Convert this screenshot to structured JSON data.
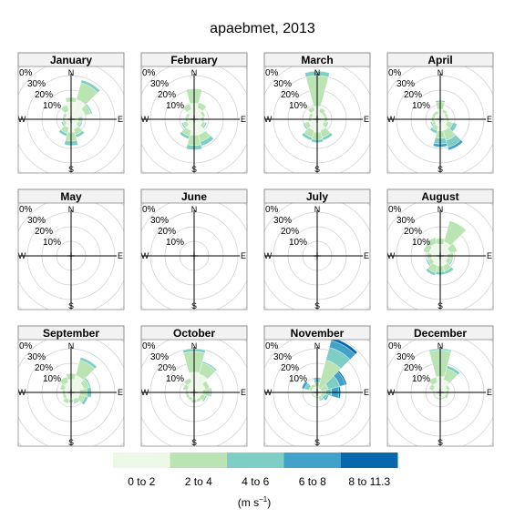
{
  "chart_data": {
    "type": "wind-rose",
    "title": "apaebmet, 2013",
    "direction_labels": {
      "n": "N",
      "e": "E",
      "s": "S",
      "w": "W"
    },
    "radial_ticks": [
      "10%",
      "20%",
      "30%",
      "0%"
    ],
    "grid": true,
    "legend": {
      "position": "bottom",
      "categories": [
        "0 to 2",
        "2 to 4",
        "4 to 6",
        "6 to 8",
        "8 to 11.3"
      ],
      "colors": [
        "#EDF8E9",
        "#BAE4B3",
        "#7ECEC6",
        "#43A2CA",
        "#0868AC"
      ],
      "unit_label": {
        "base": "(m s",
        "sup": "−1",
        "close": ")"
      }
    },
    "directions_deg": [
      0,
      30,
      60,
      90,
      120,
      150,
      180,
      210,
      240,
      270,
      300,
      330
    ],
    "panels": [
      {
        "month": "January",
        "petals": [
          [
            12,
            3,
            0,
            0,
            0
          ],
          [
            14,
            12,
            2,
            0,
            0
          ],
          [
            10,
            4,
            1,
            0,
            0
          ],
          [
            5,
            3,
            0,
            0,
            0
          ],
          [
            5,
            2,
            1,
            0,
            0
          ],
          [
            7,
            4,
            2,
            0,
            0
          ],
          [
            9,
            6,
            3,
            0,
            0
          ],
          [
            6,
            4,
            2,
            0,
            0
          ],
          [
            4,
            2,
            1,
            0,
            0
          ],
          [
            4,
            2,
            0,
            0,
            0
          ],
          [
            4,
            2,
            0,
            0,
            0
          ],
          [
            6,
            4,
            0,
            0,
            0
          ]
        ]
      },
      {
        "month": "February",
        "petals": [
          [
            11,
            10,
            0,
            0,
            0
          ],
          [
            8,
            4,
            0,
            0,
            0
          ],
          [
            6,
            2,
            0,
            0,
            0
          ],
          [
            5,
            2,
            0,
            0,
            0
          ],
          [
            6,
            2,
            1,
            0,
            0
          ],
          [
            11,
            5,
            3,
            0,
            0
          ],
          [
            11,
            7,
            3,
            0,
            0
          ],
          [
            8,
            4,
            2,
            0,
            0
          ],
          [
            5,
            3,
            1,
            0,
            0
          ],
          [
            4,
            2,
            0,
            0,
            0
          ],
          [
            4,
            2,
            0,
            0,
            0
          ],
          [
            7,
            4,
            0,
            0,
            0
          ]
        ]
      },
      {
        "month": "March",
        "petals": [
          [
            9,
            21,
            3,
            0,
            0
          ],
          [
            5,
            3,
            0,
            0,
            0
          ],
          [
            5,
            2,
            0,
            0,
            0
          ],
          [
            5,
            2,
            0,
            0,
            0
          ],
          [
            5,
            2,
            1,
            0,
            0
          ],
          [
            8,
            5,
            2,
            0,
            0
          ],
          [
            9,
            5,
            2,
            0,
            0
          ],
          [
            8,
            5,
            2,
            0,
            0
          ],
          [
            6,
            3,
            1,
            0,
            0
          ],
          [
            4,
            2,
            0,
            0,
            0
          ],
          [
            4,
            2,
            0,
            0,
            0
          ],
          [
            6,
            3,
            0,
            0,
            0
          ]
        ]
      },
      {
        "month": "April",
        "petals": [
          [
            7,
            5,
            1,
            0,
            0
          ],
          [
            5,
            2,
            0,
            0,
            0
          ],
          [
            4,
            2,
            0,
            0,
            0
          ],
          [
            4,
            2,
            0,
            0,
            0
          ],
          [
            5,
            4,
            3,
            0,
            0
          ],
          [
            8,
            7,
            5,
            2,
            0
          ],
          [
            8,
            5,
            4,
            2,
            0
          ],
          [
            5,
            3,
            2,
            0,
            0
          ],
          [
            4,
            2,
            1,
            0,
            0
          ],
          [
            4,
            2,
            0,
            0,
            0
          ],
          [
            4,
            2,
            0,
            0,
            0
          ],
          [
            4,
            2,
            0,
            0,
            0
          ]
        ]
      },
      {
        "month": "May",
        "petals": [
          [
            0,
            0,
            0,
            0,
            0
          ],
          [
            0,
            0,
            0,
            0,
            0
          ],
          [
            0,
            0,
            0,
            0,
            0
          ],
          [
            0,
            0,
            0,
            0,
            0
          ],
          [
            0,
            0,
            0,
            0,
            0
          ],
          [
            0,
            0,
            0,
            0,
            0
          ],
          [
            0,
            0,
            0,
            0,
            0
          ],
          [
            0,
            0,
            0,
            0,
            0
          ],
          [
            0,
            0,
            0,
            0,
            0
          ],
          [
            0,
            0,
            0,
            0,
            0
          ],
          [
            0,
            0,
            0,
            0,
            0
          ],
          [
            0,
            0,
            0,
            0,
            0
          ]
        ]
      },
      {
        "month": "June",
        "petals": [
          [
            0,
            0,
            0,
            0,
            0
          ],
          [
            0,
            0,
            0,
            0,
            0
          ],
          [
            0,
            0,
            0,
            0,
            0
          ],
          [
            0,
            0,
            0,
            0,
            0
          ],
          [
            0,
            0,
            0,
            0,
            0
          ],
          [
            0,
            0,
            0,
            0,
            0
          ],
          [
            0,
            0,
            0,
            0,
            0
          ],
          [
            0,
            0,
            0,
            0,
            0
          ],
          [
            0,
            0,
            0,
            0,
            0
          ],
          [
            0,
            0,
            0,
            0,
            0
          ],
          [
            0,
            0,
            0,
            0,
            0
          ],
          [
            0,
            0,
            0,
            0,
            0
          ]
        ]
      },
      {
        "month": "July",
        "petals": [
          [
            0,
            0,
            0,
            0,
            0
          ],
          [
            0,
            0,
            0,
            0,
            0
          ],
          [
            0,
            0,
            0,
            0,
            0
          ],
          [
            0,
            0,
            0,
            0,
            0
          ],
          [
            0,
            0,
            0,
            0,
            0
          ],
          [
            0,
            0,
            0,
            0,
            0
          ],
          [
            0,
            0,
            0,
            0,
            0
          ],
          [
            2,
            1,
            0,
            0,
            0
          ],
          [
            1,
            1,
            0,
            0,
            0
          ],
          [
            0,
            0,
            0,
            0,
            0
          ],
          [
            0,
            0,
            0,
            0,
            0
          ],
          [
            0,
            0,
            0,
            0,
            0
          ]
        ]
      },
      {
        "month": "August",
        "petals": [
          [
            8,
            4,
            0,
            0,
            0
          ],
          [
            10,
            15,
            0,
            0,
            0
          ],
          [
            7,
            5,
            0,
            0,
            0
          ],
          [
            5,
            4,
            0,
            0,
            0
          ],
          [
            5,
            3,
            1,
            0,
            0
          ],
          [
            7,
            4,
            2,
            0,
            0
          ],
          [
            7,
            4,
            2,
            0,
            0
          ],
          [
            7,
            5,
            2,
            0,
            0
          ],
          [
            6,
            3,
            1,
            0,
            0
          ],
          [
            6,
            3,
            0,
            0,
            0
          ],
          [
            8,
            4,
            0,
            0,
            0
          ],
          [
            9,
            4,
            0,
            0,
            0
          ]
        ]
      },
      {
        "month": "September",
        "petals": [
          [
            9,
            4,
            0,
            0,
            0
          ],
          [
            12,
            11,
            2,
            0,
            0
          ],
          [
            9,
            4,
            1,
            0,
            0
          ],
          [
            6,
            5,
            3,
            0,
            0
          ],
          [
            6,
            4,
            2,
            0,
            0
          ],
          [
            5,
            2,
            1,
            0,
            0
          ],
          [
            5,
            2,
            0,
            0,
            0
          ],
          [
            5,
            3,
            0,
            0,
            0
          ],
          [
            4,
            2,
            0,
            0,
            0
          ],
          [
            4,
            2,
            0,
            0,
            0
          ],
          [
            5,
            3,
            0,
            0,
            0
          ],
          [
            7,
            4,
            0,
            0,
            0
          ]
        ]
      },
      {
        "month": "October",
        "petals": [
          [
            14,
            14,
            2,
            0,
            0
          ],
          [
            13,
            8,
            1,
            0,
            0
          ],
          [
            8,
            3,
            0,
            0,
            0
          ],
          [
            6,
            5,
            1,
            0,
            0
          ],
          [
            5,
            3,
            1,
            0,
            0
          ],
          [
            5,
            2,
            0,
            0,
            0
          ],
          [
            5,
            2,
            0,
            0,
            0
          ],
          [
            4,
            2,
            0,
            0,
            0
          ],
          [
            4,
            2,
            0,
            0,
            0
          ],
          [
            4,
            2,
            0,
            0,
            0
          ],
          [
            5,
            3,
            0,
            0,
            0
          ],
          [
            7,
            3,
            0,
            0,
            0
          ]
        ]
      },
      {
        "month": "November",
        "petals": [
          [
            4,
            3,
            2,
            1,
            0
          ],
          [
            3,
            20,
            9,
            5,
            2
          ],
          [
            3,
            5,
            8,
            4,
            1
          ],
          [
            3,
            3,
            4,
            5,
            1
          ],
          [
            3,
            2,
            2,
            1,
            0
          ],
          [
            3,
            2,
            1,
            0,
            0
          ],
          [
            3,
            1,
            0,
            0,
            0
          ],
          [
            3,
            1,
            0,
            0,
            0
          ],
          [
            3,
            1,
            0,
            0,
            0
          ],
          [
            3,
            1,
            0,
            0,
            0
          ],
          [
            4,
            2,
            3,
            2,
            0
          ],
          [
            4,
            2,
            0,
            0,
            0
          ]
        ]
      },
      {
        "month": "December",
        "petals": [
          [
            11,
            18,
            1,
            0,
            0
          ],
          [
            9,
            8,
            2,
            0,
            0
          ],
          [
            5,
            2,
            0,
            0,
            0
          ],
          [
            4,
            2,
            0,
            0,
            0
          ],
          [
            4,
            2,
            0,
            0,
            0
          ],
          [
            4,
            1,
            0,
            0,
            0
          ],
          [
            4,
            1,
            0,
            0,
            0
          ],
          [
            4,
            1,
            0,
            0,
            0
          ],
          [
            4,
            1,
            0,
            0,
            0
          ],
          [
            4,
            1,
            0,
            0,
            0
          ],
          [
            5,
            3,
            0,
            0,
            0
          ],
          [
            7,
            4,
            0,
            0,
            0
          ]
        ]
      }
    ]
  }
}
